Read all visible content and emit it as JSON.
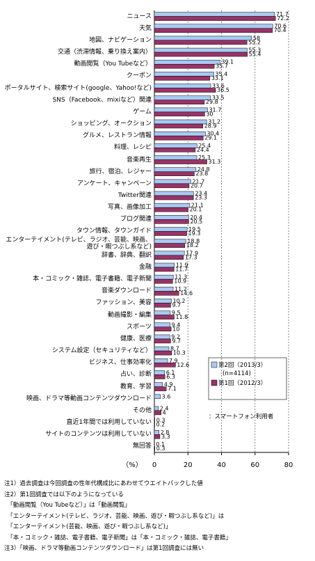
{
  "chart_data": {
    "type": "barh",
    "categories": [
      "ニュース",
      "天気",
      "地図、ナビゲーション",
      "交通（渋滞情報、乗り換え案内）",
      "動画閲覧（You Tubeなど）",
      "クーポン",
      "ポータルサイト、検索サイト(google、Yahoo!など)",
      "SNS（Facebook、mixiなど）関連",
      "ゲーム",
      "ショッピング、オークション",
      "グルメ、レストラン情報",
      "料理、レシピ",
      "音楽再生",
      "旅行、宿泊、レジャー",
      "アンケート、キャンペーン",
      "Twitter関連",
      "写真、画像加工",
      "ブログ関連",
      "タウン情報、タウンガイド",
      "エンターテイメント(テレビ、ラジオ、芸能、映画、遊び・暇つぶし系など)",
      "辞書、辞典、翻訳",
      "金融",
      "本・コミック・雑誌、電子書籍、電子新聞",
      "音楽ダウンロード",
      "ファッション、美容",
      "動画撮影・編集",
      "スポーツ",
      "健康、医療",
      "システム設定（セキュリティなど）",
      "ビジネス、仕事効率化",
      "占い、診断",
      "教育、学習",
      "映画、ドラマ等動画コンテンツダウンロード",
      "その他",
      "直近1年間では利用していない",
      "サイトのコンテンツは利用していない",
      "無回答"
    ],
    "series": [
      {
        "name": "第2回（2013/3）",
        "color": "#a9c9f2",
        "values": [
          71.7,
          70.6,
          58.0,
          55.3,
          39.1,
          35.4,
          33.6,
          33.5,
          31.7,
          31.2,
          30.4,
          25.4,
          25.3,
          24.8,
          21.7,
          23.4,
          21.1,
          20.4,
          19.5,
          18.8,
          17.9,
          11.9,
          11.3,
          11.2,
          10.2,
          9.5,
          9.4,
          9.2,
          8.7,
          7.9,
          6.1,
          4.9,
          3.6,
          2.4,
          0.3,
          2.8,
          0.1
        ]
      },
      {
        "name": "第1回（2012/3）",
        "color": "#993366",
        "values": [
          72.2,
          70.4,
          55.2,
          55.4,
          35.7,
          33.1,
          36.5,
          29.8,
          30.0,
          28.9,
          29.1,
          24.4,
          31.3,
          23.8,
          20.7,
          23.3,
          20.1,
          20.5,
          19.3,
          18.2,
          17.3,
          11.7,
          10.9,
          14.6,
          9.7,
          11.8,
          10.0,
          9.7,
          10.3,
          12.6,
          6.3,
          7.1,
          null,
          4.0,
          0.2,
          3.3,
          0.3
        ]
      }
    ],
    "xlim": [
      0,
      80
    ],
    "xticks": [
      0,
      20,
      40,
      60,
      80
    ],
    "x_label": "（%）",
    "grid": true,
    "n_label": "(n=4114)",
    "legend_note": "：スマートフォン利用者",
    "footnotes": [
      "注1）過去調査は今回調査の性年代構成比にあわせてウエイトバックした値",
      "注2）第1回調査では以下のようになっている",
      "　「動画閲覧（You Tubeなど）」は「動画閲覧」",
      "　「エンターテイメント(テレビ、ラジオ、芸能、映画、遊び・暇つぶし系など)」は",
      "　「エンターテイメント(芸能、映画、遊び・暇つぶし系など)」",
      "　「本・コミック・雑誌、電子書籍、電子新聞」は「本・コミック・雑誌、電子書籍」",
      "注3）「映画、ドラマ等動画コンテンツダウンロード」は第1回調査には無い"
    ]
  }
}
